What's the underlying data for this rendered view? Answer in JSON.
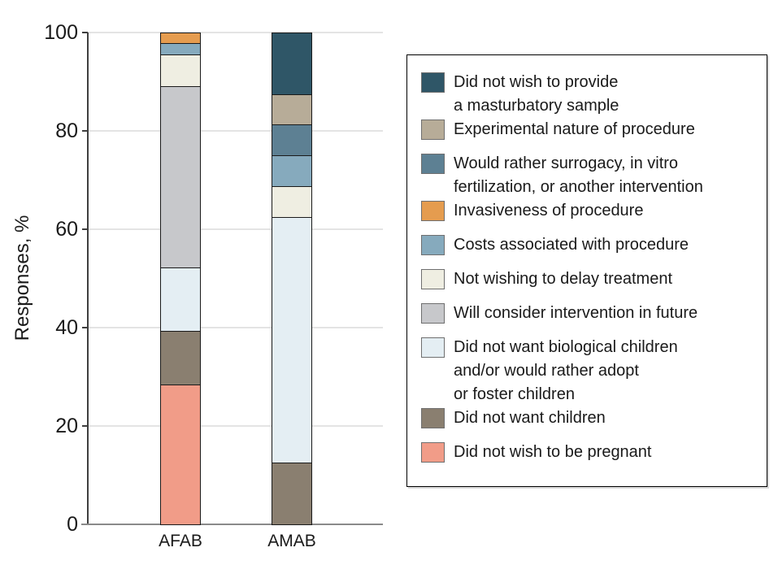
{
  "chart_data": {
    "type": "bar",
    "stacked": true,
    "title": "",
    "ylabel": "Responses, %",
    "ylim": [
      0,
      100
    ],
    "yticks": [
      0,
      20,
      40,
      60,
      80,
      100
    ],
    "grid": true,
    "legend_position": "right",
    "categories": [
      "AFAB",
      "AMAB"
    ],
    "series": [
      {
        "label": "Did not wish to provide\na masturbatory sample",
        "color": "#2F5667",
        "values": [
          0,
          12.5
        ]
      },
      {
        "label": "Experimental nature of procedure",
        "color": "#B7AC98",
        "values": [
          0,
          6.25
        ]
      },
      {
        "label": "Would rather surrogacy, in vitro\nfertilization, or another intervention",
        "color": "#5D8093",
        "values": [
          0,
          6.25
        ]
      },
      {
        "label": "Invasiveness of procedure",
        "color": "#E59C4F",
        "values": [
          2.2,
          0
        ]
      },
      {
        "label": "Costs associated with procedure",
        "color": "#86AABD",
        "values": [
          2.2,
          6.25
        ]
      },
      {
        "label": "Not wishing to delay treatment",
        "color": "#EFEEE2",
        "values": [
          6.5,
          6.25
        ]
      },
      {
        "label": "Will consider intervention in future",
        "color": "#C7C8CB",
        "values": [
          37.0,
          0
        ]
      },
      {
        "label": "Did not want biological children\nand/or would rather adopt\nor foster children",
        "color": "#E4EEF3",
        "values": [
          13.0,
          50.0
        ]
      },
      {
        "label": "Did not want children",
        "color": "#8A7F70",
        "values": [
          10.9,
          12.5
        ]
      },
      {
        "label": "Did not wish to be pregnant",
        "color": "#F19C88",
        "values": [
          28.3,
          0
        ]
      }
    ],
    "stack_note": "Legend order equals top-to-bottom stack order; zero-value segments are omitted from a bar."
  },
  "style": {
    "grid_color": "#e4e4e4",
    "yaxis_color": "#3f3f3f",
    "baseline_color": "#8a8a8a",
    "bar_outline_color": "#1a1a1a",
    "text_color": "#1a1a1a",
    "legend_border_color": "#000000",
    "swatch_border_color": "#6f6f6f"
  }
}
